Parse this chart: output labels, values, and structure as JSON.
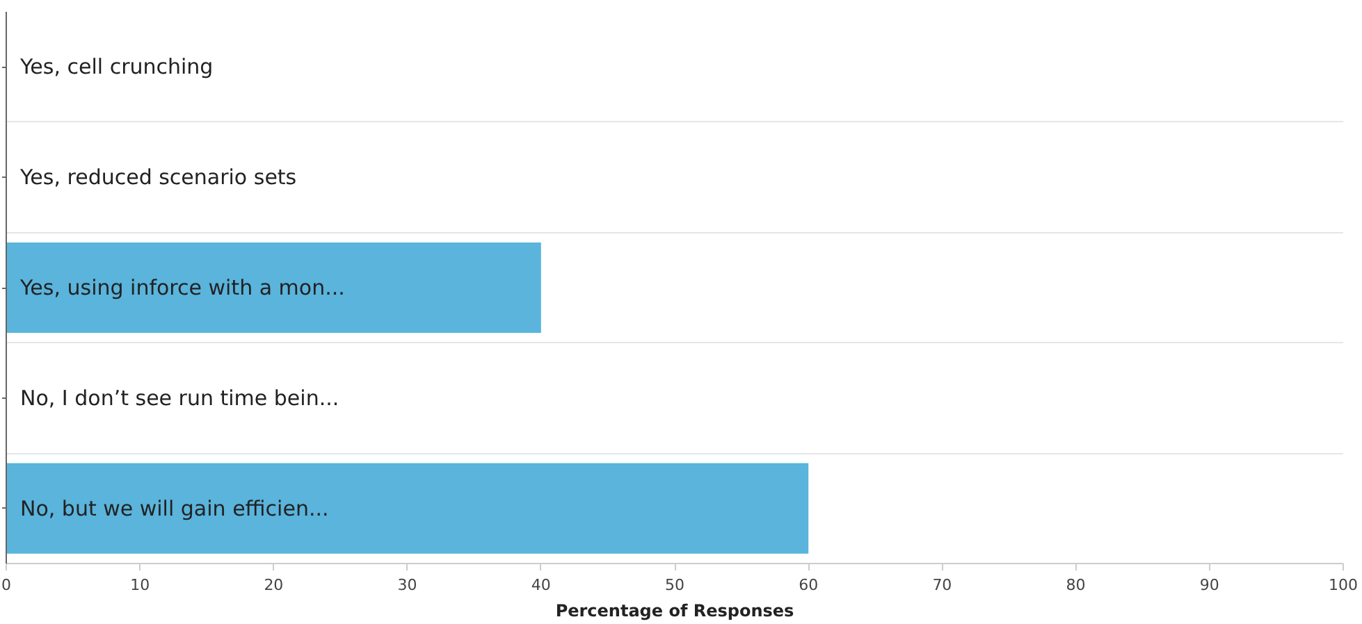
{
  "chart_data": {
    "type": "bar",
    "orientation": "horizontal",
    "xlabel": "Percentage of Responses",
    "categories": [
      "Yes, cell crunching",
      "Yes, reduced scenario sets",
      "Yes, using inforce with a mon...",
      "No, I don’t see run time bein...",
      "No, but we will gain efficien..."
    ],
    "values": [
      0,
      0,
      40,
      0,
      60
    ],
    "color": "#5ab4dc",
    "xlim": [
      0,
      100
    ],
    "xticks": [
      0,
      10,
      20,
      30,
      40,
      50,
      60,
      70,
      80,
      90,
      100
    ],
    "grid": "y"
  }
}
